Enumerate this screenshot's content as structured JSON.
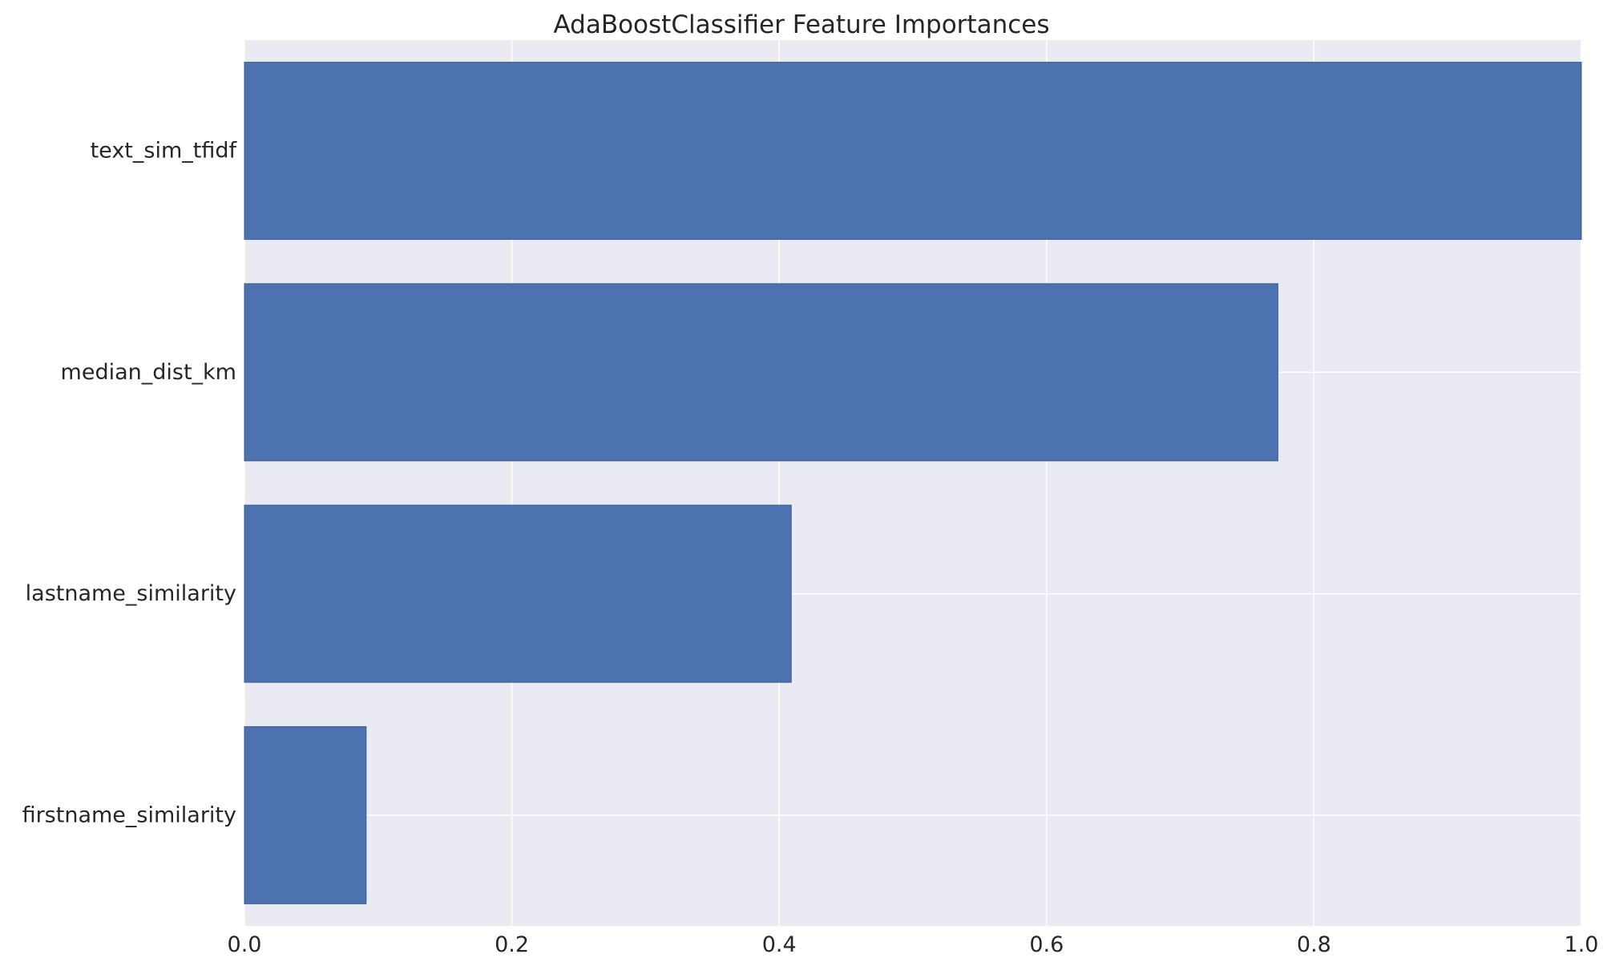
{
  "chart_data": {
    "type": "bar",
    "orientation": "horizontal",
    "title": "AdaBoostClassifier Feature Importances",
    "xlabel": "",
    "ylabel": "",
    "categories": [
      "text_sim_tfidf",
      "median_dist_km",
      "lastname_similarity",
      "firstname_similarity"
    ],
    "values": [
      1.0,
      0.773,
      0.409,
      0.091
    ],
    "xlim": [
      0.0,
      1.0
    ],
    "xticks": [
      0.0,
      0.2,
      0.4,
      0.6,
      0.8,
      1.0
    ],
    "xtick_labels": [
      "0.0",
      "0.2",
      "0.4",
      "0.6",
      "0.8",
      "1.0"
    ],
    "grid": true,
    "colors": {
      "bar": "#4c72b0",
      "background": "#eaeaf2",
      "grid": "#ffffff"
    }
  }
}
